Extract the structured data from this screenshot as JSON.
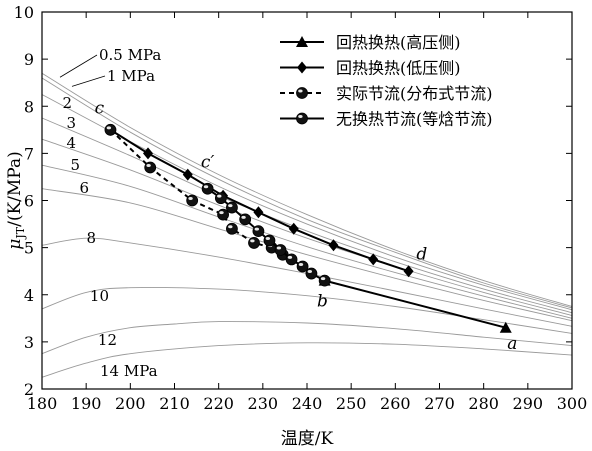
{
  "chart_data": {
    "type": "line",
    "xlabel": "温度/K",
    "ylabel_main": "μ",
    "ylabel_sub": "JT",
    "ylabel_unit": "/(K/MPa)",
    "xlim": [
      180,
      300
    ],
    "ylim": [
      2,
      10
    ],
    "xticks": [
      180,
      190,
      200,
      210,
      220,
      230,
      240,
      250,
      260,
      270,
      280,
      290,
      300
    ],
    "yticks": [
      2,
      3,
      4,
      5,
      6,
      7,
      8,
      9,
      10
    ],
    "xtick_labels": [
      "180",
      "190",
      "200",
      "210",
      "220",
      "230",
      "240",
      "250",
      "260",
      "270",
      "280",
      "290",
      "300"
    ],
    "ytick_labels": [
      "2",
      "3",
      "4",
      "5",
      "6",
      "7",
      "8",
      "9",
      "10"
    ],
    "grid": false,
    "legend_position": "top-right",
    "isobars": [
      {
        "label": "0.5 MPa",
        "x": [
          180,
          200,
          220,
          240,
          260,
          280,
          300
        ],
        "y": [
          8.7,
          7.55,
          6.55,
          5.7,
          4.95,
          4.3,
          3.75
        ]
      },
      {
        "label": "1 MPa",
        "x": [
          180,
          200,
          220,
          240,
          260,
          280,
          300
        ],
        "y": [
          8.6,
          7.45,
          6.45,
          5.6,
          4.9,
          4.25,
          3.72
        ]
      },
      {
        "label": "2",
        "x": [
          180,
          200,
          220,
          240,
          260,
          280,
          300
        ],
        "y": [
          8.25,
          7.25,
          6.3,
          5.5,
          4.8,
          4.2,
          3.68
        ]
      },
      {
        "label": "3",
        "x": [
          180,
          200,
          220,
          240,
          260,
          280,
          300
        ],
        "y": [
          7.75,
          6.95,
          6.1,
          5.35,
          4.7,
          4.12,
          3.62
        ]
      },
      {
        "label": "4",
        "x": [
          180,
          200,
          220,
          240,
          260,
          280,
          300
        ],
        "y": [
          7.3,
          6.65,
          5.9,
          5.2,
          4.6,
          4.05,
          3.56
        ]
      },
      {
        "label": "5",
        "x": [
          180,
          200,
          220,
          240,
          260,
          280,
          300
        ],
        "y": [
          6.75,
          6.3,
          5.65,
          5.02,
          4.47,
          3.97,
          3.5
        ]
      },
      {
        "label": "6",
        "x": [
          180,
          200,
          220,
          240,
          260,
          280,
          300
        ],
        "y": [
          6.25,
          5.95,
          5.4,
          4.85,
          4.35,
          3.88,
          3.45
        ]
      },
      {
        "label": "8",
        "x": [
          180,
          190,
          200,
          220,
          240,
          260,
          280,
          300
        ],
        "y": [
          5.05,
          5.2,
          5.1,
          4.8,
          4.45,
          4.08,
          3.7,
          3.33
        ]
      },
      {
        "label": "10",
        "x": [
          180,
          190,
          200,
          220,
          240,
          260,
          280,
          300
        ],
        "y": [
          3.7,
          4.05,
          4.15,
          4.12,
          3.98,
          3.75,
          3.47,
          3.18
        ]
      },
      {
        "label": "12",
        "x": [
          180,
          190,
          200,
          210,
          220,
          240,
          260,
          280,
          300
        ],
        "y": [
          2.75,
          3.1,
          3.3,
          3.38,
          3.43,
          3.4,
          3.28,
          3.1,
          2.92
        ]
      },
      {
        "label": "14 MPa",
        "x": [
          180,
          190,
          200,
          220,
          240,
          260,
          280,
          300
        ],
        "y": [
          2.25,
          2.55,
          2.75,
          2.92,
          2.98,
          2.95,
          2.85,
          2.72
        ]
      }
    ],
    "series": [
      {
        "name": "回热换热(高压侧)",
        "marker": "triangle",
        "dashed": false,
        "x": [
          285,
          244
        ],
        "y": [
          3.3,
          4.3
        ]
      },
      {
        "name": "回热换热(低压侧)",
        "marker": "diamond",
        "dashed": false,
        "x": [
          195.5,
          204,
          213,
          221,
          229,
          237,
          246,
          255,
          263
        ],
        "y": [
          7.5,
          7.0,
          6.55,
          6.1,
          5.75,
          5.4,
          5.05,
          4.75,
          4.5
        ]
      },
      {
        "name": "实际节流(分布式节流)",
        "marker": "sphere",
        "dashed": true,
        "x": [
          195.5,
          204.5,
          214,
          221,
          223,
          228,
          232,
          234.5
        ],
        "y": [
          7.5,
          6.7,
          6.0,
          5.7,
          5.4,
          5.1,
          5.0,
          4.85
        ]
      },
      {
        "name": "无换热节流(等焓节流)",
        "marker": "sphere",
        "dashed": false,
        "x": [
          217.5,
          220.5,
          223,
          226,
          229,
          231.5,
          234,
          236.5,
          239,
          241,
          244
        ],
        "y": [
          6.25,
          6.05,
          5.85,
          5.6,
          5.35,
          5.15,
          4.95,
          4.75,
          4.6,
          4.45,
          4.3
        ]
      }
    ],
    "point_labels": [
      {
        "text": "c",
        "x": 193,
        "y": 7.85
      },
      {
        "text": "c′",
        "x": 217.5,
        "y": 6.7
      },
      {
        "text": "d",
        "x": 266,
        "y": 4.75
      },
      {
        "text": "b",
        "x": 243.5,
        "y": 3.75
      },
      {
        "text": "a",
        "x": 286.5,
        "y": 2.85
      }
    ],
    "colors": {
      "series": "#000000",
      "isobar": "#9a9a9a",
      "axis": "#000000"
    }
  }
}
